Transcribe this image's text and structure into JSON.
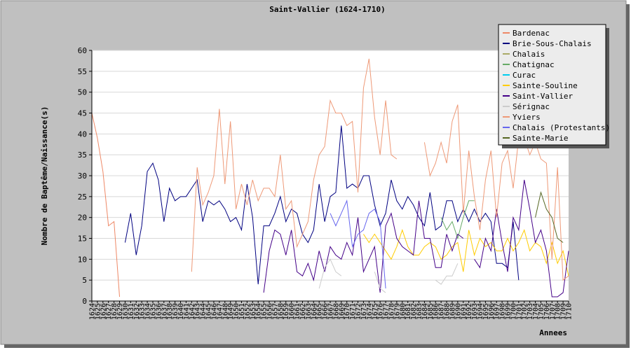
{
  "chart_data": {
    "type": "line",
    "title": "Saint-Vallier (1624-1710)",
    "xlabel": "Annees",
    "ylabel": "Nombre de Baptême/Naissance(s)",
    "ylim": [
      0,
      60
    ],
    "yticks": [
      0,
      5,
      10,
      15,
      20,
      25,
      30,
      35,
      40,
      45,
      50,
      55,
      60
    ],
    "x": [
      1624,
      1625,
      1626,
      1627,
      1628,
      1629,
      1630,
      1631,
      1632,
      1633,
      1634,
      1635,
      1636,
      1637,
      1638,
      1639,
      1640,
      1641,
      1642,
      1643,
      1644,
      1645,
      1646,
      1647,
      1648,
      1649,
      1650,
      1651,
      1652,
      1653,
      1654,
      1655,
      1656,
      1657,
      1658,
      1659,
      1660,
      1661,
      1662,
      1663,
      1664,
      1665,
      1666,
      1667,
      1668,
      1669,
      1670,
      1671,
      1672,
      1673,
      1674,
      1675,
      1676,
      1677,
      1678,
      1679,
      1680,
      1681,
      1682,
      1683,
      1684,
      1685,
      1686,
      1687,
      1688,
      1689,
      1690,
      1691,
      1692,
      1693,
      1694,
      1695,
      1696,
      1697,
      1698,
      1699,
      1700,
      1701,
      1702,
      1703,
      1704,
      1705,
      1706,
      1707,
      1708,
      1709,
      1710
    ],
    "grid": "horizontal",
    "legend_position": "top-right",
    "series": [
      {
        "name": "Bardenac",
        "color": "#ee8866",
        "values": [
          45,
          39,
          31,
          18,
          19,
          1,
          null,
          null,
          null,
          null,
          null,
          null,
          null,
          null,
          null,
          null,
          null,
          null,
          null,
          null,
          null,
          null,
          null,
          null,
          null,
          null,
          null,
          null,
          null,
          null,
          null,
          null,
          null,
          null,
          null,
          null,
          null,
          null,
          null,
          null,
          null,
          null,
          null,
          null,
          null,
          null,
          null,
          null,
          null,
          null,
          null,
          null,
          null,
          null,
          null,
          null,
          null,
          null,
          null,
          null,
          null,
          null,
          null,
          null,
          null,
          null,
          null,
          null,
          null,
          null,
          null,
          null,
          null,
          null,
          null,
          null,
          null,
          null,
          null,
          null,
          null,
          null,
          null,
          null,
          null,
          null,
          null
        ]
      },
      {
        "name": "Brie-Sous-Chalais",
        "color": "#000080",
        "values": [
          null,
          null,
          null,
          null,
          null,
          null,
          14,
          21,
          11,
          18,
          31,
          33,
          29,
          19,
          27,
          24,
          25,
          25,
          27,
          29,
          19,
          24,
          23,
          24,
          22,
          19,
          20,
          17,
          28,
          20,
          4,
          18,
          18,
          21,
          25,
          19,
          22,
          21,
          16,
          14,
          17,
          28,
          19,
          25,
          26,
          42,
          27,
          28,
          27,
          30,
          30,
          23,
          18,
          21,
          29,
          24,
          22,
          25,
          23,
          20,
          18,
          26,
          17,
          18,
          24,
          24,
          19,
          22,
          19,
          22,
          19,
          21,
          19,
          9,
          9,
          8,
          19,
          5,
          null,
          null,
          null,
          null,
          null,
          null,
          null,
          null,
          null
        ]
      },
      {
        "name": "Chalais",
        "color": "#aaaa66",
        "values": [
          null,
          null,
          null,
          null,
          null,
          null,
          null,
          null,
          null,
          null,
          null,
          null,
          null,
          null,
          null,
          null,
          null,
          null,
          null,
          null,
          null,
          null,
          null,
          null,
          null,
          null,
          null,
          null,
          null,
          null,
          null,
          null,
          null,
          null,
          null,
          null,
          null,
          null,
          null,
          null,
          null,
          null,
          null,
          null,
          null,
          null,
          null,
          null,
          null,
          null,
          null,
          null,
          null,
          null,
          null,
          null,
          null,
          null,
          null,
          null,
          null,
          null,
          null,
          null,
          null,
          null,
          null,
          null,
          null,
          null,
          null,
          null,
          null,
          null,
          null,
          null,
          null,
          null,
          null,
          null,
          null,
          null,
          null,
          null,
          null,
          null,
          null
        ]
      },
      {
        "name": "Chatignac",
        "color": "#66aa66",
        "values": [
          null,
          null,
          null,
          null,
          null,
          null,
          null,
          null,
          null,
          null,
          null,
          null,
          null,
          null,
          null,
          null,
          null,
          null,
          null,
          null,
          null,
          null,
          null,
          null,
          null,
          null,
          null,
          null,
          null,
          null,
          null,
          null,
          null,
          null,
          null,
          null,
          null,
          null,
          null,
          null,
          null,
          null,
          null,
          null,
          null,
          null,
          null,
          null,
          null,
          null,
          null,
          null,
          null,
          null,
          null,
          null,
          null,
          null,
          null,
          null,
          null,
          null,
          null,
          20,
          17,
          19,
          15,
          20,
          24,
          24,
          null,
          null,
          null,
          null,
          null,
          null,
          null,
          null,
          null,
          null,
          null,
          null,
          null,
          null,
          null,
          null,
          null
        ]
      },
      {
        "name": "Curac",
        "color": "#00ccee",
        "values": [
          null,
          null,
          null,
          null,
          null,
          null,
          null,
          null,
          null,
          null,
          null,
          null,
          null,
          null,
          null,
          null,
          null,
          null,
          null,
          null,
          null,
          null,
          null,
          null,
          null,
          null,
          null,
          null,
          null,
          null,
          null,
          null,
          null,
          null,
          null,
          null,
          null,
          null,
          null,
          null,
          null,
          null,
          null,
          null,
          null,
          null,
          null,
          null,
          null,
          null,
          null,
          null,
          null,
          null,
          null,
          null,
          null,
          null,
          null,
          null,
          null,
          null,
          null,
          null,
          null,
          null,
          null,
          null,
          null,
          null,
          null,
          null,
          null,
          null,
          null,
          null,
          null,
          null,
          null,
          null,
          null,
          null,
          null,
          null,
          null,
          null,
          null
        ]
      },
      {
        "name": "Sainte-Souline",
        "color": "#ffcc00",
        "values": [
          null,
          null,
          null,
          null,
          null,
          null,
          null,
          null,
          null,
          null,
          null,
          null,
          null,
          null,
          null,
          null,
          null,
          null,
          null,
          null,
          null,
          null,
          null,
          null,
          null,
          null,
          null,
          null,
          null,
          null,
          null,
          null,
          null,
          null,
          null,
          null,
          null,
          null,
          null,
          null,
          null,
          null,
          null,
          null,
          null,
          null,
          null,
          null,
          null,
          16,
          14,
          16,
          14,
          12,
          10,
          13,
          17,
          13,
          11,
          11,
          13,
          14,
          13,
          10,
          11,
          13,
          14,
          7,
          17,
          11,
          15,
          13,
          14,
          12,
          12,
          15,
          12,
          14,
          17,
          12,
          14,
          13,
          9,
          14,
          9,
          12,
          6
        ]
      },
      {
        "name": "Saint-Vallier",
        "color": "#440088",
        "values": [
          null,
          null,
          null,
          null,
          null,
          null,
          null,
          null,
          null,
          null,
          null,
          null,
          null,
          null,
          null,
          null,
          null,
          null,
          null,
          null,
          null,
          null,
          null,
          null,
          null,
          null,
          null,
          null,
          null,
          null,
          null,
          2,
          12,
          17,
          16,
          11,
          17,
          7,
          6,
          9,
          5,
          12,
          7,
          13,
          11,
          10,
          14,
          11,
          20,
          7,
          10,
          13,
          2,
          18,
          21,
          15,
          13,
          12,
          11,
          24,
          15,
          15,
          8,
          8,
          16,
          12,
          16,
          15,
          null,
          10,
          8,
          15,
          12,
          22,
          14,
          7,
          20,
          17,
          29,
          22,
          14,
          17,
          12,
          1,
          1,
          2,
          12
        ]
      },
      {
        "name": "Sérignac",
        "color": "#cccccc",
        "values": [
          null,
          null,
          null,
          null,
          null,
          null,
          null,
          null,
          null,
          null,
          null,
          null,
          null,
          null,
          null,
          null,
          null,
          null,
          null,
          null,
          null,
          null,
          null,
          null,
          null,
          null,
          null,
          null,
          null,
          null,
          null,
          null,
          null,
          null,
          null,
          null,
          null,
          null,
          null,
          null,
          null,
          3,
          8,
          10,
          7,
          6,
          null,
          null,
          null,
          null,
          null,
          7,
          3,
          2,
          null,
          null,
          null,
          null,
          null,
          null,
          null,
          null,
          5,
          4,
          6,
          6,
          9,
          null,
          null,
          null,
          null,
          null,
          null,
          null,
          null,
          null,
          null,
          null,
          null,
          null,
          null,
          null,
          null,
          null,
          null,
          null,
          null
        ]
      },
      {
        "name": "Yviers",
        "color": "#ee9977",
        "values": [
          null,
          null,
          null,
          null,
          null,
          null,
          null,
          null,
          null,
          null,
          null,
          null,
          null,
          null,
          null,
          null,
          null,
          null,
          7,
          32,
          23,
          26,
          30,
          46,
          28,
          43,
          22,
          28,
          23,
          29,
          24,
          27,
          27,
          25,
          35,
          22,
          24,
          13,
          16,
          19,
          29,
          35,
          37,
          48,
          45,
          45,
          42,
          43,
          26,
          51,
          58,
          44,
          35,
          48,
          35,
          34,
          null,
          null,
          null,
          null,
          38,
          30,
          33,
          38,
          33,
          43,
          47,
          21,
          36,
          25,
          17,
          29,
          36,
          20,
          33,
          36,
          27,
          39,
          39,
          35,
          38,
          34,
          33,
          10,
          32,
          5,
          6
        ]
      },
      {
        "name": "Chalais (Protestants)",
        "color": "#6666ee",
        "values": [
          null,
          null,
          null,
          null,
          null,
          null,
          null,
          null,
          null,
          null,
          null,
          null,
          null,
          null,
          null,
          null,
          null,
          null,
          null,
          null,
          null,
          null,
          null,
          null,
          null,
          null,
          null,
          null,
          null,
          null,
          null,
          null,
          null,
          null,
          null,
          null,
          null,
          null,
          null,
          null,
          null,
          null,
          null,
          21,
          18,
          21,
          24,
          13,
          16,
          17,
          21,
          22,
          19,
          3,
          null,
          null,
          null,
          null,
          null,
          null,
          null,
          null,
          null,
          null,
          null,
          null,
          null,
          null,
          null,
          null,
          null,
          null,
          null,
          null,
          null,
          null,
          null,
          null,
          null,
          null,
          null,
          null,
          null,
          null,
          null,
          null,
          null
        ]
      },
      {
        "name": "Sainte-Marie",
        "color": "#556622",
        "values": [
          null,
          null,
          null,
          null,
          null,
          null,
          null,
          null,
          null,
          null,
          null,
          null,
          null,
          null,
          null,
          null,
          null,
          null,
          null,
          null,
          null,
          null,
          null,
          null,
          null,
          null,
          null,
          null,
          null,
          null,
          null,
          null,
          null,
          null,
          null,
          null,
          null,
          null,
          null,
          null,
          null,
          null,
          null,
          null,
          null,
          null,
          null,
          null,
          null,
          null,
          null,
          null,
          null,
          null,
          null,
          null,
          null,
          null,
          null,
          null,
          null,
          null,
          null,
          null,
          null,
          null,
          null,
          1,
          null,
          null,
          null,
          null,
          null,
          null,
          null,
          null,
          null,
          null,
          null,
          null,
          20,
          26,
          22,
          20,
          15,
          14,
          null
        ]
      }
    ]
  }
}
